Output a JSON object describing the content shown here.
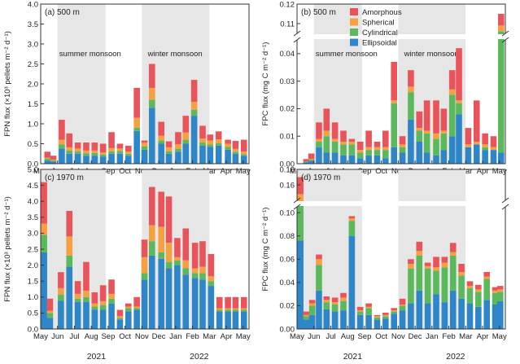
{
  "colors": {
    "amorphous": "#e8545a",
    "spherical": "#f5a142",
    "cylindrical": "#5cb85c",
    "ellipsoidal": "#2e86c8",
    "shade": "#e6e6e6",
    "axis": "#333333"
  },
  "months": [
    "May",
    "Jun",
    "Jul",
    "Aug",
    "Sep",
    "Oct",
    "Nov",
    "Dec",
    "Jan",
    "Feb",
    "Mar",
    "Apr",
    "May"
  ],
  "years": [
    "2021",
    "2022"
  ],
  "legend": [
    "Amorphous",
    "Spherical",
    "Cylindrical",
    "Ellipsoidal"
  ],
  "band_labels": {
    "summer": "summer monsoon",
    "winter": "winter monsoon"
  },
  "chart_data": [
    {
      "id": "a",
      "type": "bar",
      "stacked": true,
      "panel_label": "(a) 500 m",
      "ylabel": "FPN flux (×10³ pellets m⁻² d⁻¹)",
      "ylim": [
        0,
        4
      ],
      "yticks": [
        "0.0",
        "0.5",
        "1.0",
        "1.5",
        "2.0",
        "2.5",
        "3.0",
        "3.5",
        "4.0"
      ],
      "ytick_values": [
        0,
        0.5,
        1,
        1.5,
        2,
        2.5,
        3,
        3.5,
        4
      ],
      "x": [
        0.4,
        0.75,
        1.25,
        1.7,
        2.2,
        2.7,
        3.2,
        3.7,
        4.2,
        4.7,
        5.2,
        5.7,
        6.15,
        6.6,
        7.15,
        7.6,
        8.15,
        8.6,
        9.1,
        9.6,
        10.05,
        10.55,
        11.1,
        11.55,
        12.05
      ],
      "shaded": [
        [
          1,
          3.85
        ],
        [
          6,
          10
        ]
      ],
      "series": [
        {
          "name": "Ellipsoidal",
          "values": [
            0.08,
            0.05,
            0.38,
            0.25,
            0.25,
            0.2,
            0.2,
            0.18,
            0.25,
            0.25,
            0.2,
            0.82,
            0.35,
            1.4,
            0.5,
            0.25,
            0.3,
            0.5,
            1.2,
            0.45,
            0.42,
            0.45,
            0.35,
            0.25,
            0.2
          ]
        },
        {
          "name": "Cylindrical",
          "values": [
            0.05,
            0.03,
            0.1,
            0.08,
            0.06,
            0.06,
            0.07,
            0.05,
            0.06,
            0.07,
            0.05,
            0.08,
            0.08,
            0.2,
            0.08,
            0.06,
            0.07,
            0.1,
            0.15,
            0.08,
            0.06,
            0.06,
            0.07,
            0.05,
            0.04
          ]
        },
        {
          "name": "Spherical",
          "values": [
            0.02,
            0.02,
            0.12,
            0.08,
            0.07,
            0.07,
            0.06,
            0.05,
            0.08,
            0.06,
            0.05,
            0.25,
            0.1,
            0.3,
            0.12,
            0.1,
            0.12,
            0.18,
            0.2,
            0.1,
            0.1,
            0.1,
            0.08,
            0.07,
            0.06
          ]
        },
        {
          "name": "Amorphous",
          "values": [
            0.15,
            0.1,
            0.5,
            0.35,
            0.15,
            0.2,
            0.2,
            0.22,
            0.4,
            0.12,
            0.15,
            0.75,
            0.05,
            0.6,
            0.35,
            0.15,
            0.3,
            0.42,
            0.55,
            0.32,
            0.15,
            0.2,
            0.1,
            0.2,
            0.3
          ]
        }
      ]
    },
    {
      "id": "b",
      "type": "bar",
      "stacked": true,
      "panel_label": "(b) 500 m",
      "ylabel": "FPC flux (mg C m⁻² d⁻¹)",
      "broken": true,
      "ylim_lower": [
        0,
        0.045
      ],
      "ylim_upper": [
        0.105,
        0.12
      ],
      "yticks_lower": [
        "0.00",
        "0.01",
        "0.02",
        "0.03",
        "0.04"
      ],
      "ytick_values_lower": [
        0,
        0.01,
        0.02,
        0.03,
        0.04
      ],
      "yticks_upper": [
        "0.11",
        "0.12"
      ],
      "ytick_values_upper": [
        0.11,
        0.12
      ],
      "x": [
        0.55,
        0.85,
        1.3,
        1.75,
        2.25,
        2.75,
        3.25,
        3.75,
        4.25,
        4.75,
        5.25,
        5.75,
        6.25,
        6.75,
        7.25,
        7.7,
        8.25,
        8.7,
        9.2,
        9.6,
        10.15,
        10.65,
        11.15,
        11.65,
        12.1
      ],
      "shaded": [
        [
          1,
          3.85
        ],
        [
          6,
          10
        ]
      ],
      "series": [
        {
          "name": "Ellipsoidal",
          "values": [
            0.0005,
            0.001,
            0.006,
            0.004,
            0.004,
            0.003,
            0.003,
            0.002,
            0.003,
            0.003,
            0.002,
            0.006,
            0.004,
            0.016,
            0.008,
            0.004,
            0.003,
            0.005,
            0.01,
            0.018,
            0.006,
            0.007,
            0.005,
            0.005,
            0.004
          ]
        },
        {
          "name": "Cylindrical",
          "values": [
            0.0002,
            0.0005,
            0.002,
            0.006,
            0.004,
            0.004,
            0.004,
            0.002,
            0.002,
            0.002,
            0.003,
            0.016,
            0.002,
            0.01,
            0.004,
            0.007,
            0.006,
            0.006,
            0.015,
            0.004,
            0.0,
            0.0,
            0.001,
            0.0,
            0.102
          ]
        },
        {
          "name": "Spherical",
          "values": [
            0.0,
            0.0002,
            0.001,
            0.002,
            0.001,
            0.001,
            0.001,
            0.001,
            0.001,
            0.001,
            0.001,
            0.001,
            0.001,
            0.002,
            0.001,
            0.001,
            0.002,
            0.001,
            0.002,
            0.001,
            0.001,
            0.001,
            0.001,
            0.001,
            0.003
          ]
        },
        {
          "name": "Amorphous",
          "values": [
            0.001,
            0.002,
            0.006,
            0.008,
            0.006,
            0.004,
            0.001,
            0.003,
            0.006,
            0.002,
            0.006,
            0.014,
            0.003,
            0.006,
            0.006,
            0.011,
            0.012,
            0.008,
            0.007,
            0.019,
            0.006,
            0.015,
            0.004,
            0.004,
            0.006
          ]
        }
      ]
    },
    {
      "id": "c",
      "type": "bar",
      "stacked": true,
      "panel_label": "(c) 1970 m",
      "ylabel": "FPN flux (×10³ pellets m⁻² d⁻¹)",
      "ylim": [
        0,
        5
      ],
      "yticks": [
        "0.0",
        "0.5",
        "1.0",
        "1.5",
        "2.0",
        "2.5",
        "3.0",
        "3.5",
        "4.0",
        "4.5",
        "5.0"
      ],
      "ytick_values": [
        0,
        0.5,
        1,
        1.5,
        2,
        2.5,
        3,
        3.5,
        4,
        4.5,
        5
      ],
      "x": [
        0.2,
        0.55,
        1.2,
        1.7,
        2.2,
        2.7,
        3.2,
        3.7,
        4.2,
        4.7,
        5.2,
        5.7,
        6.15,
        6.6,
        7.15,
        7.6,
        8.1,
        8.6,
        9.15,
        9.6,
        10.1,
        10.6,
        11.1,
        11.55,
        12.05
      ],
      "shaded": [
        [
          0,
          3.85
        ],
        [
          6,
          10
        ]
      ],
      "series": [
        {
          "name": "Ellipsoidal",
          "values": [
            2.4,
            0.35,
            0.88,
            1.95,
            0.85,
            0.85,
            0.6,
            0.6,
            0.8,
            0.3,
            0.55,
            0.6,
            1.55,
            2.3,
            2.2,
            1.9,
            2.0,
            1.7,
            1.6,
            1.55,
            1.35,
            0.55,
            0.55,
            0.55,
            0.55
          ]
        },
        {
          "name": "Cylindrical",
          "values": [
            0.55,
            0.15,
            0.2,
            0.35,
            0.1,
            0.15,
            0.1,
            0.15,
            0.15,
            0.05,
            0.1,
            0.05,
            0.2,
            0.45,
            0.2,
            0.2,
            0.15,
            0.2,
            0.15,
            0.2,
            0.15,
            0.05,
            0.05,
            0.05,
            0.05
          ]
        },
        {
          "name": "Spherical",
          "values": [
            0.35,
            0.07,
            0.2,
            0.6,
            0.15,
            0.2,
            0.1,
            0.12,
            0.15,
            0.05,
            0.05,
            0.05,
            0.5,
            0.5,
            0.8,
            0.6,
            0.1,
            0.25,
            0.15,
            0.2,
            0.15,
            0.05,
            0.05,
            0.05,
            0.05
          ]
        },
        {
          "name": "Amorphous",
          "values": [
            1.3,
            0.38,
            0.5,
            0.8,
            0.4,
            0.9,
            0.35,
            0.5,
            0.45,
            0.2,
            0.1,
            0.3,
            0.55,
            1.2,
            1.1,
            1.45,
            0.6,
            1.0,
            0.8,
            0.8,
            0.7,
            0.35,
            0.35,
            0.35,
            0.35
          ]
        }
      ]
    },
    {
      "id": "d",
      "type": "bar",
      "stacked": true,
      "panel_label": "(d) 1970 m",
      "ylabel": "FPC flux (mg C m⁻² d⁻¹)",
      "broken": true,
      "ylim_lower": [
        0,
        0.105
      ],
      "ylim_upper": [
        0.14,
        0.18
      ],
      "yticks_lower": [
        "0.00",
        "0.02",
        "0.04",
        "0.06",
        "0.08",
        "0.10"
      ],
      "ytick_values_lower": [
        0,
        0.02,
        0.04,
        0.06,
        0.08,
        0.1
      ],
      "yticks_upper": [
        "0.16",
        "0.18"
      ],
      "ytick_values_upper": [
        0.16,
        0.18
      ],
      "x": [
        0.2,
        0.55,
        0.9,
        1.3,
        1.75,
        2.25,
        2.75,
        3.25,
        3.75,
        4.25,
        4.75,
        5.25,
        5.75,
        6.25,
        6.75,
        7.25,
        7.75,
        8.25,
        8.75,
        9.25,
        9.75,
        10.25,
        10.75,
        11.25,
        11.75,
        12.05
      ],
      "shaded": [
        [
          0,
          3.85
        ],
        [
          6,
          10
        ]
      ],
      "series": [
        {
          "name": "Ellipsoidal",
          "values": [
            0.076,
            0.008,
            0.012,
            0.033,
            0.017,
            0.015,
            0.016,
            0.08,
            0.012,
            0.012,
            0.008,
            0.009,
            0.013,
            0.016,
            0.022,
            0.033,
            0.022,
            0.03,
            0.023,
            0.033,
            0.026,
            0.022,
            0.019,
            0.025,
            0.021,
            0.024
          ]
        },
        {
          "name": "Cylindrical",
          "values": [
            0.06,
            0.003,
            0.008,
            0.022,
            0.006,
            0.006,
            0.008,
            0.013,
            0.003,
            0.006,
            0.002,
            0.002,
            0.002,
            0.004,
            0.03,
            0.03,
            0.03,
            0.02,
            0.03,
            0.03,
            0.02,
            0.013,
            0.013,
            0.018,
            0.01,
            0.008
          ]
        },
        {
          "name": "Spherical",
          "values": [
            0.012,
            0.001,
            0.002,
            0.005,
            0.002,
            0.002,
            0.003,
            0.002,
            0.001,
            0.001,
            0.001,
            0.001,
            0.001,
            0.001,
            0.004,
            0.004,
            0.002,
            0.003,
            0.004,
            0.003,
            0.003,
            0.002,
            0.002,
            0.002,
            0.002,
            0.002
          ]
        },
        {
          "name": "Amorphous",
          "values": [
            0.022,
            0.003,
            0.003,
            0.004,
            0.003,
            0.004,
            0.004,
            0.002,
            0.003,
            0.003,
            0.001,
            0.002,
            0.002,
            0.005,
            0.004,
            0.008,
            0.003,
            0.009,
            0.005,
            0.008,
            0.007,
            0.004,
            0.004,
            0.004,
            0.003,
            0.003
          ]
        }
      ]
    }
  ]
}
